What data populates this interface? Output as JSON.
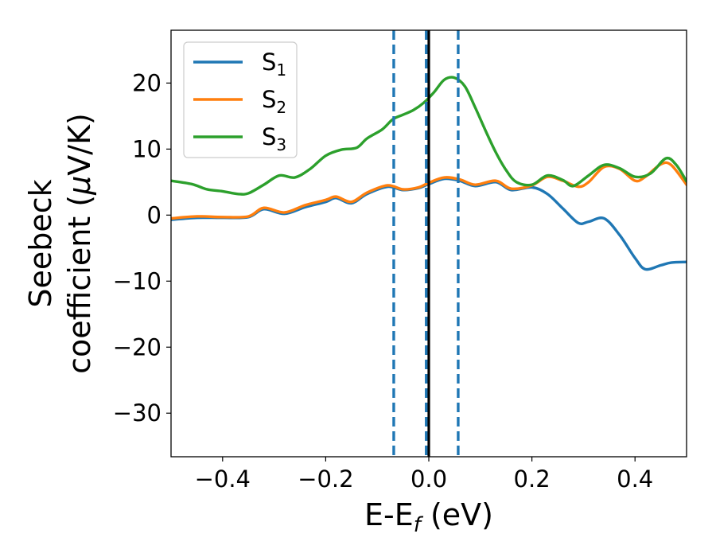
{
  "chart_data": {
    "type": "line",
    "xlabel": "E-E",
    "xlabel_sub": "f",
    "xlabel_unit": " (eV)",
    "ylabel_line1": "Seebeck",
    "ylabel_line2": "coefficient  (",
    "ylabel_mu": "μ",
    "ylabel_unit": "V/K)",
    "xlim": [
      -0.5,
      0.5
    ],
    "ylim": [
      -36.6,
      28
    ],
    "xticks": [
      -0.4,
      -0.2,
      0.0,
      0.2,
      0.4
    ],
    "xtick_labels": [
      "−0.4",
      "−0.2",
      "0.0",
      "0.2",
      "0.4"
    ],
    "yticks": [
      -30,
      -20,
      -10,
      0,
      10,
      20
    ],
    "ytick_labels": [
      "−30",
      "−20",
      "−10",
      "0",
      "10",
      "20"
    ],
    "legend_position": "upper-left",
    "vlines": [
      {
        "x": -0.068,
        "style": "dashed",
        "color": "#1f77b4"
      },
      {
        "x": -0.005,
        "style": "dashed",
        "color": "#1f77b4"
      },
      {
        "x": 0.057,
        "style": "dashed",
        "color": "#1f77b4"
      },
      {
        "x": 0.0,
        "style": "solid",
        "color": "#000000"
      }
    ],
    "series": [
      {
        "name": "S",
        "sub": "1",
        "color": "#1f77b4",
        "x": [
          -0.5,
          -0.45,
          -0.4,
          -0.35,
          -0.32,
          -0.28,
          -0.24,
          -0.2,
          -0.18,
          -0.15,
          -0.12,
          -0.08,
          -0.05,
          -0.02,
          0.0,
          0.03,
          0.06,
          0.09,
          0.13,
          0.16,
          0.2,
          0.23,
          0.26,
          0.29,
          0.31,
          0.34,
          0.37,
          0.4,
          0.42,
          0.45,
          0.47,
          0.5
        ],
        "values": [
          -0.7,
          -0.4,
          -0.4,
          -0.3,
          0.9,
          0.2,
          1.2,
          2.0,
          2.6,
          1.8,
          3.2,
          4.3,
          3.8,
          4.1,
          4.7,
          5.5,
          5.2,
          4.4,
          5.0,
          3.8,
          4.2,
          3.2,
          1.0,
          -1.2,
          -1.0,
          -0.5,
          -3.0,
          -6.5,
          -8.2,
          -7.6,
          -7.2,
          -7.1
        ]
      },
      {
        "name": "S",
        "sub": "2",
        "color": "#ff7f0e",
        "x": [
          -0.5,
          -0.45,
          -0.4,
          -0.35,
          -0.32,
          -0.28,
          -0.24,
          -0.2,
          -0.18,
          -0.15,
          -0.12,
          -0.08,
          -0.05,
          -0.02,
          0.0,
          0.03,
          0.06,
          0.09,
          0.13,
          0.16,
          0.2,
          0.23,
          0.26,
          0.29,
          0.31,
          0.34,
          0.37,
          0.4,
          0.42,
          0.45,
          0.47,
          0.5
        ],
        "values": [
          -0.5,
          -0.2,
          -0.3,
          -0.2,
          1.1,
          0.4,
          1.5,
          2.3,
          2.8,
          2.0,
          3.4,
          4.5,
          3.9,
          4.2,
          4.9,
          5.7,
          5.4,
          4.6,
          5.2,
          4.0,
          4.5,
          5.8,
          5.2,
          4.3,
          5.0,
          7.3,
          7.0,
          5.2,
          5.8,
          7.7,
          7.6,
          4.6
        ]
      },
      {
        "name": "S",
        "sub": "3",
        "color": "#2ca02c",
        "x": [
          -0.5,
          -0.46,
          -0.43,
          -0.4,
          -0.37,
          -0.35,
          -0.32,
          -0.29,
          -0.26,
          -0.23,
          -0.2,
          -0.17,
          -0.14,
          -0.12,
          -0.09,
          -0.07,
          -0.05,
          -0.03,
          -0.01,
          0.01,
          0.03,
          0.05,
          0.07,
          0.09,
          0.11,
          0.13,
          0.15,
          0.17,
          0.2,
          0.23,
          0.26,
          0.28,
          0.31,
          0.34,
          0.37,
          0.4,
          0.43,
          0.46,
          0.48,
          0.5
        ],
        "values": [
          5.2,
          4.7,
          3.9,
          3.6,
          3.2,
          3.3,
          4.6,
          6.0,
          5.7,
          7.0,
          9.0,
          9.9,
          10.2,
          11.6,
          13.0,
          14.5,
          15.2,
          15.9,
          17.0,
          18.6,
          20.5,
          20.8,
          19.5,
          16.3,
          12.8,
          9.5,
          6.8,
          5.0,
          4.6,
          6.0,
          5.3,
          4.4,
          6.0,
          7.6,
          7.1,
          5.8,
          6.3,
          8.6,
          7.6,
          5.1
        ]
      }
    ]
  }
}
